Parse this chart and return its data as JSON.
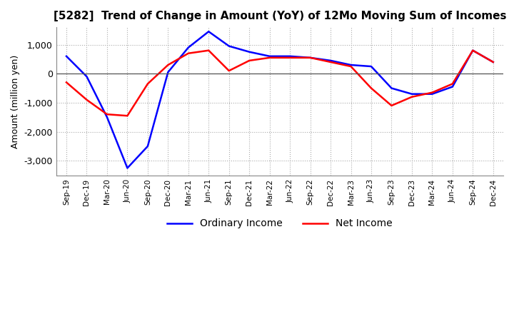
{
  "title": "[5282]  Trend of Change in Amount (YoY) of 12Mo Moving Sum of Incomes",
  "ylabel": "Amount (million yen)",
  "x_labels": [
    "Sep-19",
    "Dec-19",
    "Mar-20",
    "Jun-20",
    "Sep-20",
    "Dec-20",
    "Mar-21",
    "Jun-21",
    "Sep-21",
    "Dec-21",
    "Mar-22",
    "Jun-22",
    "Sep-22",
    "Dec-22",
    "Mar-23",
    "Jun-23",
    "Sep-23",
    "Dec-23",
    "Mar-24",
    "Jun-24",
    "Sep-24",
    "Dec-24"
  ],
  "ordinary_income": [
    600,
    -100,
    -1500,
    -3250,
    -2500,
    50,
    900,
    1450,
    950,
    750,
    600,
    600,
    550,
    450,
    300,
    250,
    -500,
    -700,
    -700,
    -450,
    800,
    400
  ],
  "net_income": [
    -300,
    -900,
    -1400,
    -1450,
    -350,
    300,
    700,
    800,
    100,
    450,
    550,
    550,
    550,
    400,
    250,
    -500,
    -1100,
    -800,
    -650,
    -350,
    800,
    400
  ],
  "ordinary_color": "#0000ff",
  "net_color": "#ff0000",
  "ylim": [
    -3500,
    1600
  ],
  "yticks": [
    -3000,
    -2000,
    -1000,
    0,
    1000
  ],
  "grid_color": "#aaaaaa",
  "background_color": "#ffffff",
  "title_fontsize": 11,
  "legend_labels": [
    "Ordinary Income",
    "Net Income"
  ]
}
